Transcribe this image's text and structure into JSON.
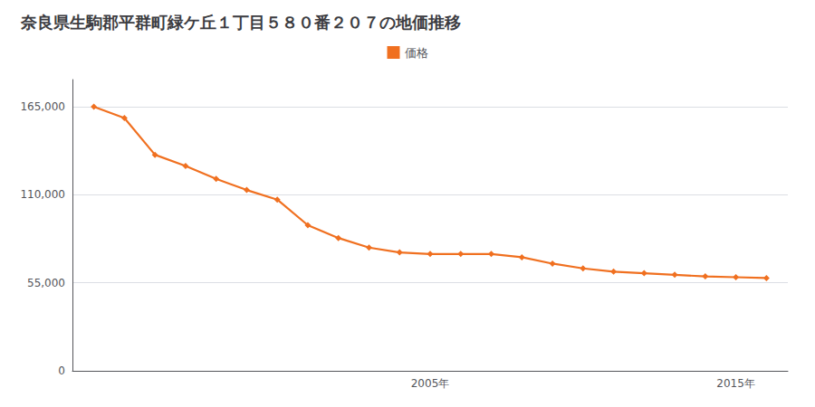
{
  "chart_data": {
    "type": "line",
    "title": "奈良県生駒郡平群町緑ケ丘１丁目５８０番２０７の地価推移",
    "x": [
      1994,
      1995,
      1996,
      1997,
      1998,
      1999,
      2000,
      2001,
      2002,
      2003,
      2004,
      2005,
      2006,
      2007,
      2008,
      2009,
      2010,
      2011,
      2012,
      2013,
      2014,
      2015,
      2016
    ],
    "series": [
      {
        "name": "価格",
        "color": "#f07020",
        "marker": "diamond",
        "values": [
          165000,
          158000,
          135000,
          128000,
          120000,
          113000,
          107000,
          91000,
          83000,
          77000,
          74000,
          73000,
          73000,
          73000,
          71000,
          67000,
          64000,
          62000,
          61000,
          60000,
          59000,
          58500,
          58000
        ]
      }
    ],
    "xlim": [
      1993.3,
      2016.7
    ],
    "xticks": [
      {
        "value": 2005,
        "label": "2005年"
      },
      {
        "value": 2015,
        "label": "2015年"
      }
    ],
    "ylim": [
      0,
      182000
    ],
    "yticks": [
      0,
      {
        "value": 55000,
        "label": "55,000"
      },
      {
        "value": 110000,
        "label": "110,000"
      },
      {
        "value": 165000,
        "label": "165,000"
      }
    ],
    "grid": "y",
    "legend": "top"
  }
}
